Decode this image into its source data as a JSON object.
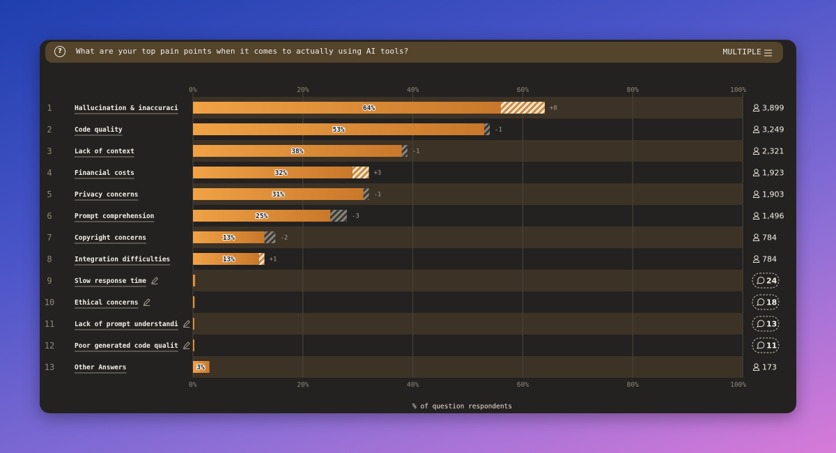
{
  "question": {
    "text": "What are your top pain points when it comes to actually using AI tools?",
    "type_label": "MULTIPLE",
    "icon": "question-circle-icon"
  },
  "chart_data": {
    "type": "bar",
    "orientation": "horizontal",
    "xlabel": "% of question respondents",
    "xlim": [
      0,
      100
    ],
    "x_ticks": [
      "0%",
      "20%",
      "40%",
      "60%",
      "80%",
      "100%"
    ],
    "bar_color": "#f0a245",
    "rows": [
      {
        "rank": "1",
        "label": "Hallucination & inaccuraci",
        "value": 64,
        "value_label": "64%",
        "change": 8,
        "change_label": "+8",
        "count": "3,899",
        "count_type": "users",
        "editable": false
      },
      {
        "rank": "2",
        "label": "Code quality",
        "value": 53,
        "value_label": "53%",
        "change": -1,
        "change_label": "-1",
        "count": "3,249",
        "count_type": "users",
        "editable": false
      },
      {
        "rank": "3",
        "label": "Lack of context",
        "value": 38,
        "value_label": "38%",
        "change": -1,
        "change_label": "-1",
        "count": "2,321",
        "count_type": "users",
        "editable": false
      },
      {
        "rank": "4",
        "label": "Financial costs",
        "value": 32,
        "value_label": "32%",
        "change": 3,
        "change_label": "+3",
        "count": "1,923",
        "count_type": "users",
        "editable": false
      },
      {
        "rank": "5",
        "label": "Privacy concerns",
        "value": 31,
        "value_label": "31%",
        "change": -1,
        "change_label": "-1",
        "count": "1,903",
        "count_type": "users",
        "editable": false
      },
      {
        "rank": "6",
        "label": "Prompt comprehension",
        "value": 25,
        "value_label": "25%",
        "change": -3,
        "change_label": "-3",
        "count": "1,496",
        "count_type": "users",
        "editable": false
      },
      {
        "rank": "7",
        "label": "Copyright concerns",
        "value": 13,
        "value_label": "13%",
        "change": -2,
        "change_label": "-2",
        "count": "784",
        "count_type": "users",
        "editable": false
      },
      {
        "rank": "8",
        "label": "Integration difficulties",
        "value": 13,
        "value_label": "13%",
        "change": 1,
        "change_label": "+1",
        "count": "784",
        "count_type": "users",
        "editable": false
      },
      {
        "rank": "9",
        "label": "Slow response time",
        "value": 0.4,
        "value_label": "",
        "change": null,
        "change_label": "",
        "count": "24",
        "count_type": "comments",
        "editable": true
      },
      {
        "rank": "10",
        "label": "Ethical concerns",
        "value": 0.3,
        "value_label": "",
        "change": null,
        "change_label": "",
        "count": "18",
        "count_type": "comments",
        "editable": true
      },
      {
        "rank": "11",
        "label": "Lack of prompt understandi",
        "value": 0.2,
        "value_label": "",
        "change": null,
        "change_label": "",
        "count": "13",
        "count_type": "comments",
        "editable": true
      },
      {
        "rank": "12",
        "label": "Poor generated code qualit",
        "value": 0.2,
        "value_label": "",
        "change": null,
        "change_label": "",
        "count": "11",
        "count_type": "comments",
        "editable": true
      },
      {
        "rank": "13",
        "label": "Other Answers",
        "value": 3,
        "value_label": "3%",
        "change": null,
        "change_label": "",
        "count": "173",
        "count_type": "users",
        "editable": false
      }
    ]
  }
}
